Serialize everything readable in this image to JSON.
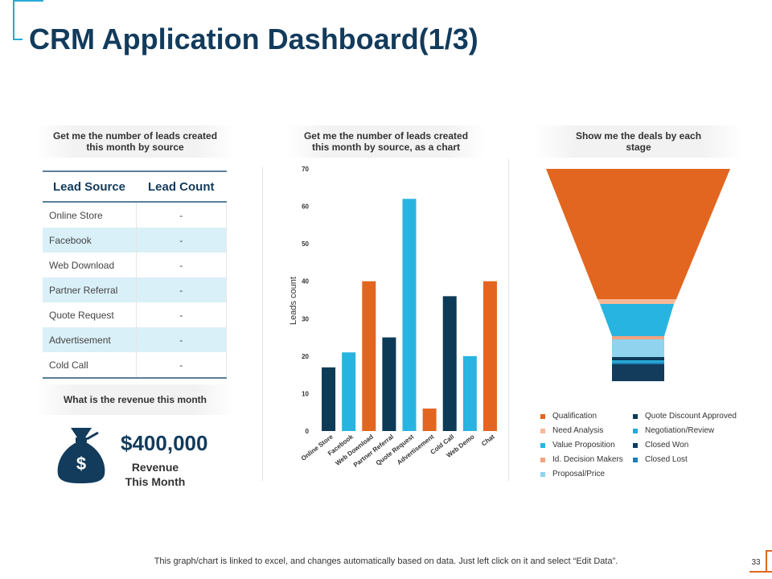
{
  "title": "CRM Application Dashboard(1/3)",
  "colors": {
    "accent": "#27a9d9",
    "navy": "#123b5c",
    "orange": "#e2661f",
    "dark": "#0c3a57",
    "light_blue": "#28b4e0"
  },
  "leads_card": {
    "heading": "Get me the number of leads created this month by source",
    "columns": [
      "Lead Source",
      "Lead Count"
    ],
    "rows": [
      {
        "source": "Online Store",
        "count": "-"
      },
      {
        "source": "Facebook",
        "count": "-"
      },
      {
        "source": "Web Download",
        "count": "-"
      },
      {
        "source": "Partner Referral",
        "count": "-"
      },
      {
        "source": "Quote Request",
        "count": "-"
      },
      {
        "source": "Advertisement",
        "count": "-"
      },
      {
        "source": "Cold Call",
        "count": "-"
      }
    ]
  },
  "revenue_card": {
    "heading": "What is the revenue this month",
    "amount": "$400,000",
    "label": "Revenue This Month",
    "icon_symbol": "$"
  },
  "chart_card": {
    "heading": "Get me the number of leads created this month by source, as a chart"
  },
  "chart_data": {
    "type": "bar",
    "title": "",
    "xlabel": "",
    "ylabel": "Leads count",
    "ylim": [
      0,
      70
    ],
    "yticks": [
      0,
      10,
      20,
      30,
      40,
      50,
      60,
      70
    ],
    "categories": [
      "Online Store",
      "Facebook",
      "Web Download",
      "Partner Referral",
      "Quote Request",
      "Advertisement",
      "Cold Call",
      "Web Demo",
      "Chat"
    ],
    "values": [
      17,
      21,
      40,
      25,
      62,
      6,
      36,
      20,
      40
    ],
    "bar_colors": [
      "#0c3a57",
      "#28b4e0",
      "#e2661f",
      "#0c3a57",
      "#28b4e0",
      "#e2661f",
      "#0c3a57",
      "#28b4e0",
      "#e2661f"
    ]
  },
  "funnel_card": {
    "heading": "Show me the deals by each stage",
    "legend": [
      {
        "label": "Qualification",
        "color": "#e2661f"
      },
      {
        "label": "Quote Discount Approved",
        "color": "#0c3a57"
      },
      {
        "label": "Need Analysis",
        "color": "#f7b899"
      },
      {
        "label": "Negotiation/Review",
        "color": "#27a9d9"
      },
      {
        "label": "Value Proposition",
        "color": "#28b4e0"
      },
      {
        "label": "Closed Won",
        "color": "#123b5c"
      },
      {
        "label": "Id. Decision Makers",
        "color": "#f0a380"
      },
      {
        "label": "Closed Lost",
        "color": "#1f7fb5"
      },
      {
        "label": "Proposal/Price",
        "color": "#8fd3ee"
      }
    ]
  },
  "footer": {
    "note": "This graph/chart is linked to excel, and changes automatically based on data. Just left click on it and select “Edit Data”.",
    "page_number": "33"
  }
}
